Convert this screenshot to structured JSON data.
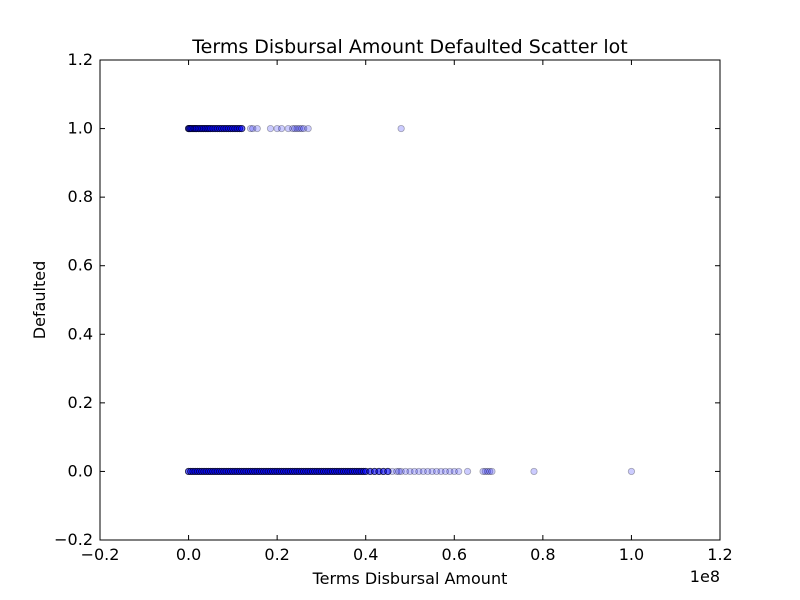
{
  "chart_data": {
    "type": "scatter",
    "title": "Terms Disbursal Amount Defaulted Scatter lot",
    "xlabel": "Terms Disbursal Amount",
    "ylabel": "Defaulted",
    "x_offset_label": "1e8",
    "xlim": [
      -0.2,
      1.2
    ],
    "ylim": [
      -0.2,
      1.2
    ],
    "x_scale_multiplier": 100000000,
    "x_ticks": [
      "−0.2",
      "0.0",
      "0.2",
      "0.4",
      "0.6",
      "0.8",
      "1.0",
      "1.2"
    ],
    "y_ticks": [
      "−0.2",
      "0.0",
      "0.2",
      "0.4",
      "0.6",
      "0.8",
      "1.0",
      "1.2"
    ],
    "grid": false,
    "marker_color": "#0000ff",
    "marker_opacity": 0.2,
    "series": [
      {
        "name": "",
        "points": {
          "y1_x": [
            0.0,
            0.002,
            0.005,
            0.008,
            0.012,
            0.015,
            0.018,
            0.022,
            0.026,
            0.03,
            0.034,
            0.038,
            0.042,
            0.046,
            0.05,
            0.055,
            0.06,
            0.065,
            0.07,
            0.075,
            0.08,
            0.085,
            0.09,
            0.095,
            0.1,
            0.105,
            0.11,
            0.115,
            0.12,
            0.14,
            0.145,
            0.155,
            0.185,
            0.2,
            0.21,
            0.225,
            0.235,
            0.24,
            0.245,
            0.25,
            0.255,
            0.26,
            0.27,
            0.48
          ],
          "y0_x": [
            0.0,
            0.005,
            0.01,
            0.015,
            0.02,
            0.025,
            0.03,
            0.035,
            0.04,
            0.045,
            0.05,
            0.055,
            0.06,
            0.065,
            0.07,
            0.075,
            0.08,
            0.085,
            0.09,
            0.095,
            0.1,
            0.105,
            0.11,
            0.115,
            0.12,
            0.125,
            0.13,
            0.135,
            0.14,
            0.145,
            0.15,
            0.155,
            0.16,
            0.165,
            0.17,
            0.175,
            0.18,
            0.185,
            0.19,
            0.195,
            0.2,
            0.205,
            0.21,
            0.215,
            0.22,
            0.225,
            0.23,
            0.235,
            0.24,
            0.245,
            0.25,
            0.255,
            0.26,
            0.265,
            0.27,
            0.275,
            0.28,
            0.285,
            0.29,
            0.295,
            0.3,
            0.305,
            0.31,
            0.315,
            0.32,
            0.325,
            0.33,
            0.335,
            0.34,
            0.345,
            0.35,
            0.355,
            0.36,
            0.365,
            0.37,
            0.375,
            0.38,
            0.385,
            0.39,
            0.395,
            0.4,
            0.41,
            0.42,
            0.43,
            0.44,
            0.45,
            0.46,
            0.47,
            0.475,
            0.48,
            0.49,
            0.5,
            0.51,
            0.52,
            0.53,
            0.54,
            0.55,
            0.56,
            0.57,
            0.58,
            0.59,
            0.6,
            0.61,
            0.63,
            0.665,
            0.67,
            0.675,
            0.68,
            0.685,
            0.78,
            1.0
          ]
        }
      }
    ]
  }
}
